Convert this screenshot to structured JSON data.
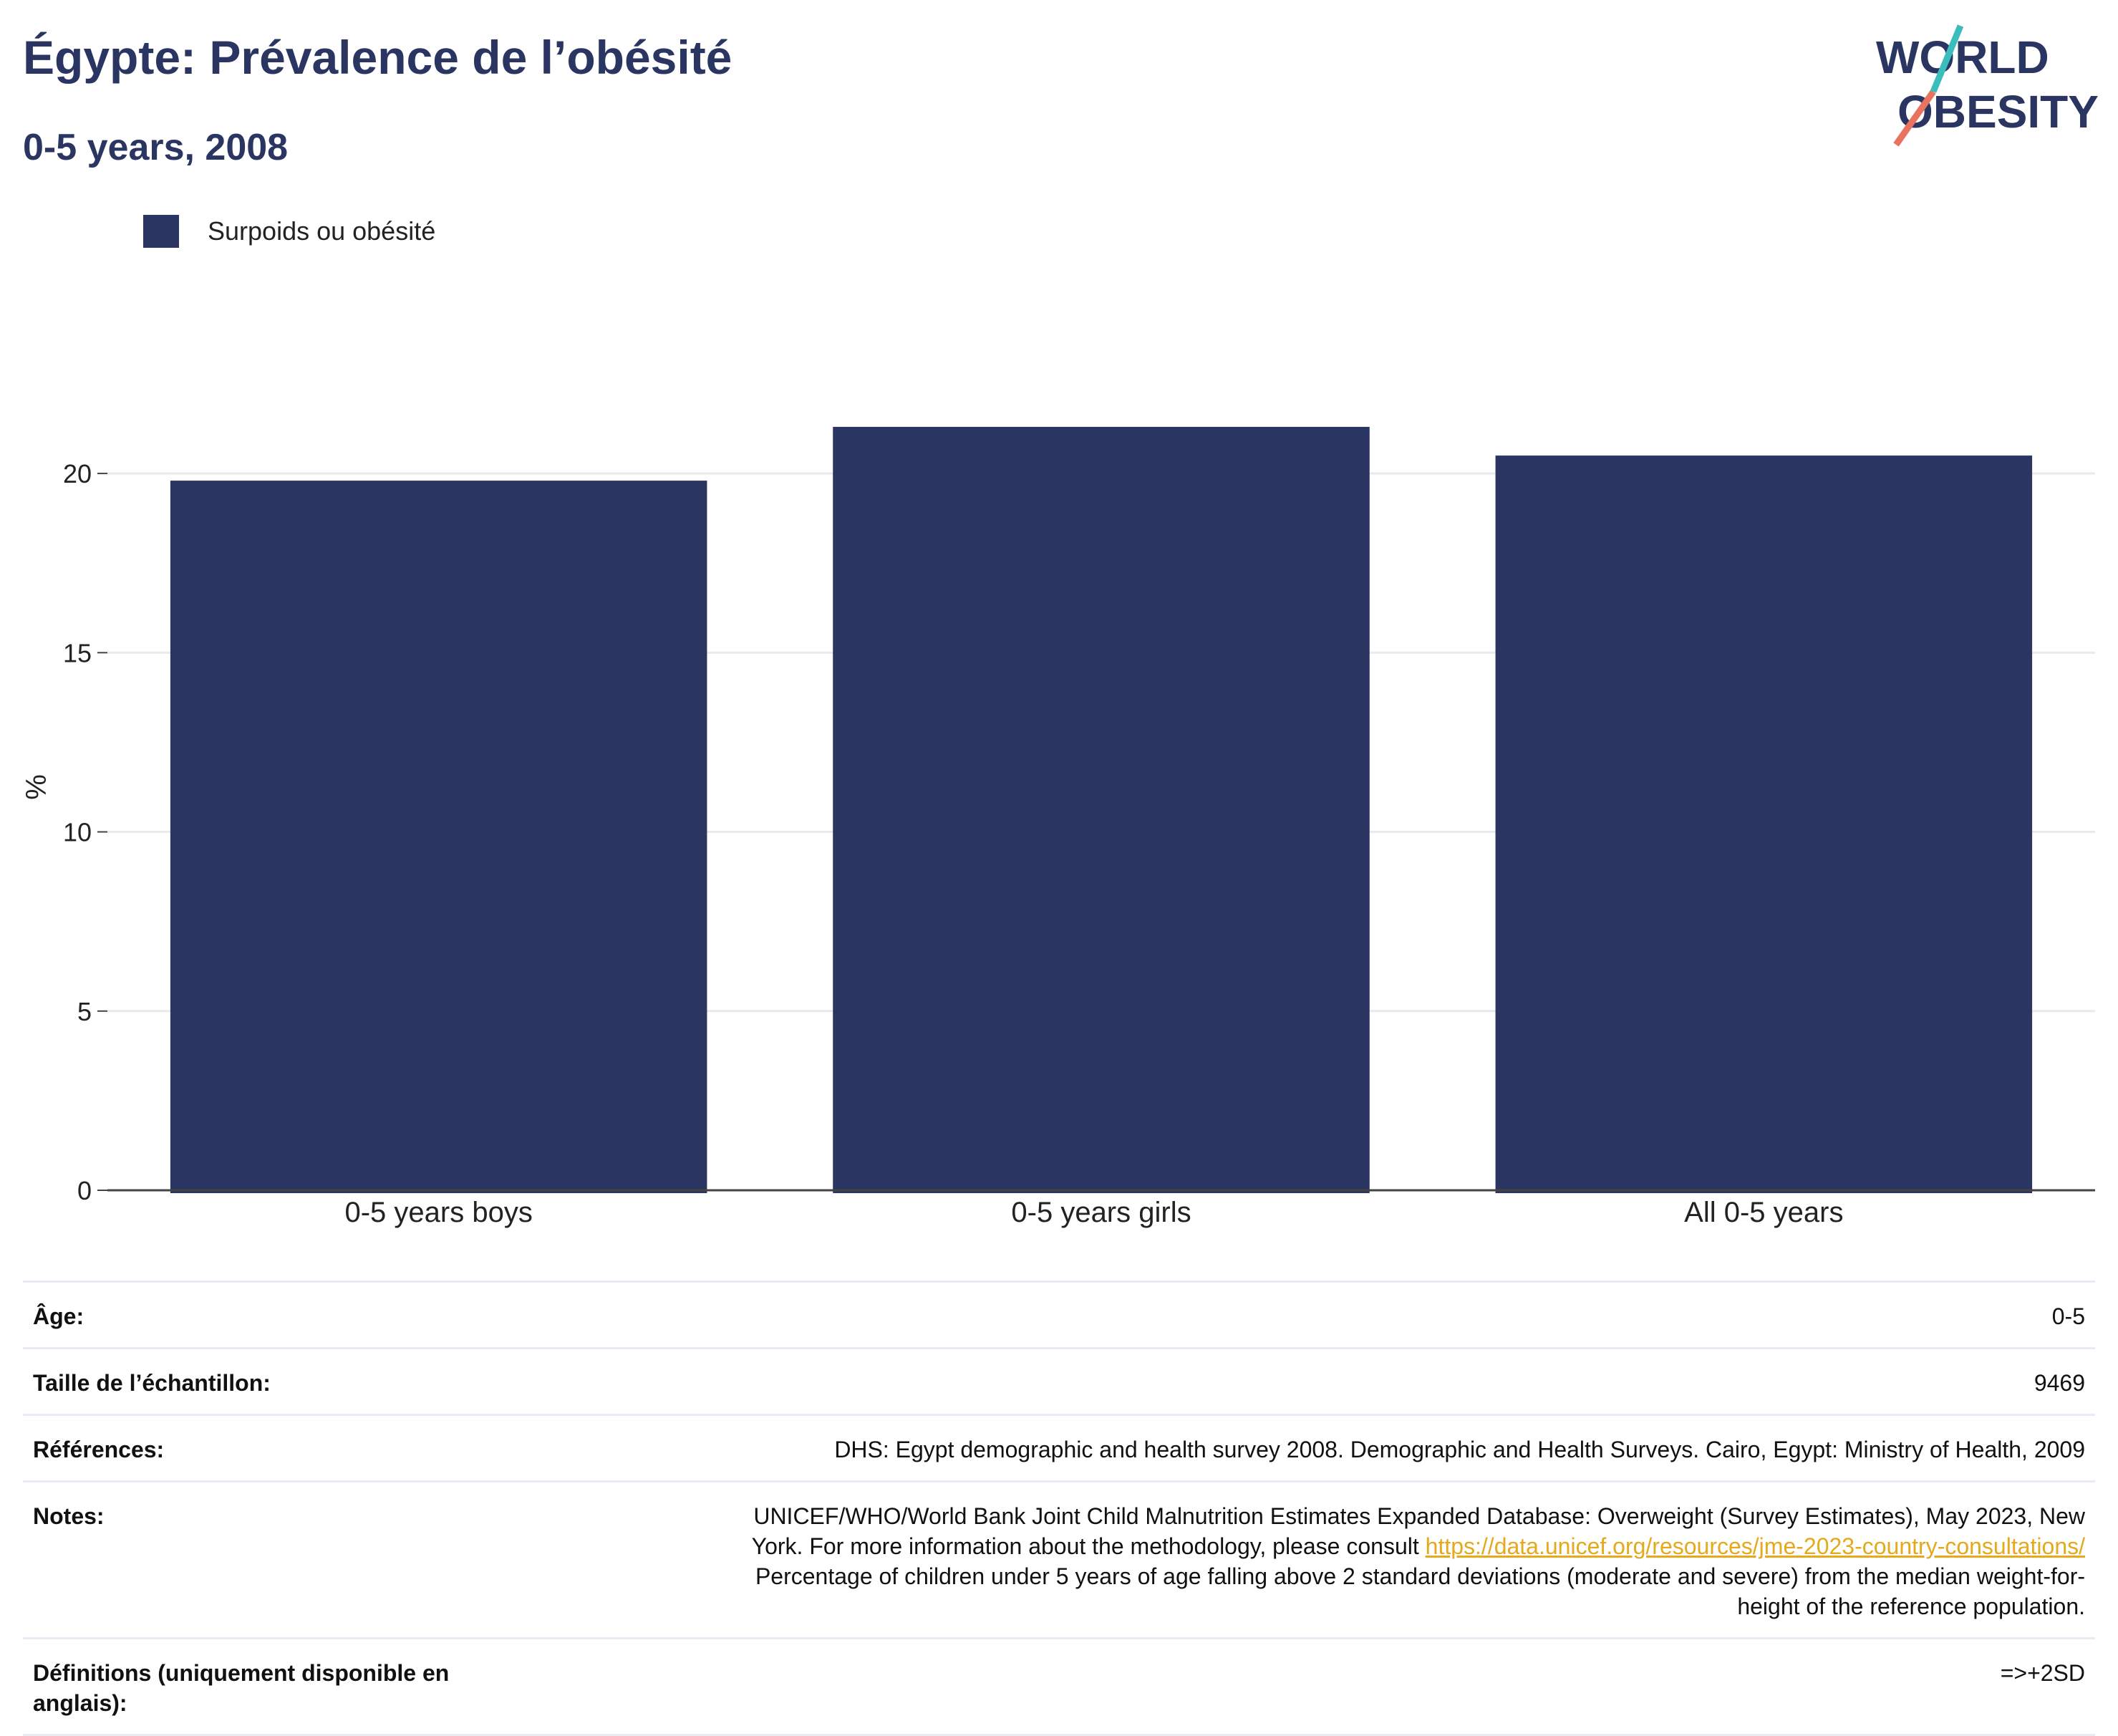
{
  "header": {
    "title": "Égypte: Prévalence de l’obésité",
    "subtitle": "0-5 years, 2008"
  },
  "logo": {
    "line1": "WORLD",
    "line2": "OBESITY"
  },
  "legend": {
    "label": "Surpoids ou obésité",
    "color": "#2a3561"
  },
  "chart_data": {
    "type": "bar",
    "categories": [
      "0-5 years boys",
      "0-5 years girls",
      "All 0-5 years"
    ],
    "series": [
      {
        "name": "Surpoids ou obésité",
        "values": [
          19.8,
          21.3,
          20.5
        ]
      }
    ],
    "ylabel": "%",
    "ylim": [
      0,
      22.5
    ],
    "yticks": [
      0,
      5,
      10,
      15,
      20
    ],
    "grid": true,
    "legend_position": "top-left",
    "bar_color": "#2a3561"
  },
  "info": {
    "age_label": "Âge:",
    "age_value": "0-5",
    "sample_label": "Taille de l’échantillon:",
    "sample_value": "9469",
    "refs_label": "Références:",
    "refs_value": "DHS: Egypt demographic and health survey 2008. Demographic and Health Surveys. Cairo, Egypt: Ministry of Health, 2009",
    "notes_label": "Notes:",
    "notes_line1": "UNICEF/WHO/World Bank Joint Child Malnutrition Estimates Expanded Database: Overweight (Survey Estimates), May 2023, New",
    "notes_line2": "York. For more information about the methodology, please consult ",
    "notes_link": "https://data.unicef.org/resources/jme-2023-country-consultations/",
    "notes_line3": "Percentage of children under 5 years of age falling above 2 standard deviations (moderate and severe) from the median weight-for-",
    "notes_line4": "height of the reference population.",
    "defs_label": "Définitions (uniquement disponible en anglais):",
    "defs_value": "=>+2SD"
  }
}
